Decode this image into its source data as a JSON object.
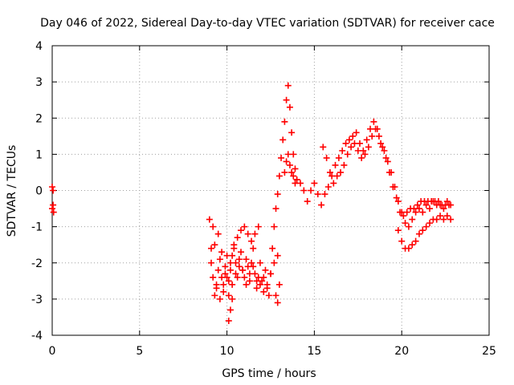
{
  "chart_data": {
    "type": "scatter",
    "title": "Day 046 of 2022, Sidereal Day-to-day VTEC variation (SDTVAR) for receiver cace",
    "xlabel": "GPS time / hours",
    "ylabel": "SDTVAR / TECUs",
    "xlim": [
      0,
      25
    ],
    "ylim": [
      -4,
      4
    ],
    "xticks": [
      "0",
      "5",
      "10",
      "15",
      "20",
      "25"
    ],
    "yticks": [
      "-4",
      "-3",
      "-2",
      "-1",
      "0",
      "1",
      "2",
      "3",
      "4"
    ],
    "grid": true,
    "marker": "+",
    "color": "#ff0000",
    "series": [
      {
        "name": "",
        "x": [
          0.0,
          0.05,
          0.08,
          0.0,
          0.05,
          9.0,
          9.1,
          9.2,
          9.3,
          9.4,
          9.5,
          9.6,
          9.7,
          9.8,
          9.9,
          10.0,
          10.1,
          10.2,
          10.3,
          10.4,
          10.5,
          10.6,
          10.7,
          10.8,
          10.9,
          11.0,
          11.1,
          11.2,
          11.3,
          11.4,
          11.5,
          11.6,
          11.7,
          11.8,
          11.9,
          12.0,
          12.1,
          12.2,
          12.3,
          12.4,
          12.5,
          12.6,
          12.7,
          12.8,
          12.9,
          13.0,
          13.1,
          13.2,
          13.3,
          13.4,
          13.5,
          13.6,
          13.7,
          13.8,
          13.9,
          14.0,
          14.2,
          14.4,
          14.6,
          14.8,
          15.0,
          15.2,
          15.4,
          15.6,
          15.8,
          16.0,
          16.2,
          16.4,
          16.6,
          16.8,
          17.0,
          17.2,
          17.4,
          17.6,
          17.8,
          18.0,
          18.2,
          18.4,
          18.6,
          18.8,
          19.0,
          19.2,
          19.4,
          19.6,
          19.8,
          20.0,
          20.2,
          20.4,
          20.6,
          20.8,
          21.0,
          21.2,
          21.4,
          21.6,
          21.8,
          22.0,
          22.2,
          22.4,
          22.6,
          22.8,
          9.1,
          9.3,
          9.5,
          9.7,
          9.9,
          10.1,
          10.3,
          10.5,
          10.7,
          10.9,
          11.1,
          11.3,
          11.5,
          11.7,
          11.9,
          12.1,
          12.3,
          12.5,
          12.7,
          12.9,
          9.2,
          9.4,
          9.6,
          9.8,
          10.0,
          10.2,
          10.4,
          10.6,
          10.8,
          11.0,
          11.2,
          11.4,
          11.6,
          11.8,
          10.1,
          10.2,
          10.3,
          12.8,
          12.9,
          13.0,
          13.3,
          13.4,
          13.5,
          13.6,
          13.7,
          13.8,
          13.9,
          14.0,
          15.5,
          15.7,
          15.9,
          16.1,
          16.3,
          16.5,
          16.7,
          16.9,
          17.1,
          17.3,
          17.5,
          17.7,
          17.9,
          18.1,
          18.3,
          18.5,
          18.7,
          18.9,
          19.1,
          19.3,
          19.5,
          19.7,
          19.9,
          20.1,
          20.3,
          20.5,
          20.7,
          20.9,
          21.1,
          21.3,
          21.5,
          21.7,
          21.9,
          22.1,
          22.3,
          22.5,
          22.7,
          19.8,
          20.0,
          20.2,
          20.4,
          20.6,
          20.8,
          21.0,
          21.2,
          21.4,
          21.6,
          21.8,
          22.0,
          22.2,
          22.4,
          22.6,
          22.8
        ],
        "y": [
          0.1,
          -0.4,
          -0.6,
          -0.5,
          0.0,
          -0.8,
          -1.6,
          -2.4,
          -2.9,
          -2.7,
          -2.2,
          -1.9,
          -2.4,
          -2.6,
          -2.1,
          -1.8,
          -2.5,
          -2.2,
          -1.8,
          -1.5,
          -2.0,
          -2.4,
          -2.1,
          -1.7,
          -2.2,
          -2.4,
          -1.9,
          -2.1,
          -2.5,
          -2.0,
          -1.6,
          -2.3,
          -2.7,
          -2.4,
          -2.0,
          -2.5,
          -2.8,
          -2.2,
          -2.6,
          -2.9,
          -2.3,
          -1.6,
          -1.0,
          -0.5,
          -0.1,
          0.4,
          0.9,
          1.4,
          1.9,
          2.5,
          2.9,
          2.3,
          1.6,
          1.0,
          0.6,
          0.3,
          0.2,
          0.0,
          -0.3,
          0.0,
          0.2,
          -0.1,
          -0.4,
          -0.1,
          0.1,
          0.4,
          0.7,
          0.9,
          1.1,
          1.3,
          1.4,
          1.5,
          1.6,
          1.3,
          1.1,
          1.4,
          1.7,
          1.9,
          1.7,
          1.3,
          1.1,
          0.8,
          0.5,
          0.1,
          -0.3,
          -0.6,
          -0.9,
          -1.0,
          -0.8,
          -0.6,
          -0.5,
          -0.6,
          -0.4,
          -0.5,
          -0.3,
          -0.4,
          -0.4,
          -0.5,
          -0.3,
          -0.4,
          -2.0,
          -1.5,
          -1.2,
          -1.7,
          -2.3,
          -2.9,
          -2.6,
          -2.3,
          -1.9,
          -2.2,
          -2.6,
          -2.3,
          -2.1,
          -2.5,
          -2.6,
          -2.4,
          -2.7,
          -2.3,
          -2.0,
          -1.8,
          -1.0,
          -2.6,
          -3.0,
          -2.8,
          -2.4,
          -2.0,
          -1.6,
          -1.3,
          -1.1,
          -1.0,
          -1.2,
          -1.4,
          -1.2,
          -1.0,
          -3.6,
          -3.3,
          -3.0,
          -2.9,
          -3.1,
          -2.6,
          0.5,
          0.8,
          1.0,
          0.7,
          0.5,
          0.4,
          0.2,
          0.3,
          1.2,
          0.9,
          0.5,
          0.2,
          0.4,
          0.5,
          0.7,
          1.0,
          1.2,
          1.3,
          1.1,
          0.9,
          1.0,
          1.2,
          1.5,
          1.7,
          1.5,
          1.2,
          0.9,
          0.5,
          0.1,
          -0.2,
          -0.6,
          -0.7,
          -0.6,
          -0.5,
          -0.5,
          -0.4,
          -0.3,
          -0.3,
          -0.3,
          -0.3,
          -0.3,
          -0.3,
          -0.4,
          -0.4,
          -0.4,
          -1.1,
          -1.4,
          -1.6,
          -1.6,
          -1.5,
          -1.4,
          -1.2,
          -1.1,
          -1.0,
          -0.9,
          -0.8,
          -0.8,
          -0.7,
          -0.8,
          -0.7,
          -0.8
        ]
      }
    ]
  }
}
